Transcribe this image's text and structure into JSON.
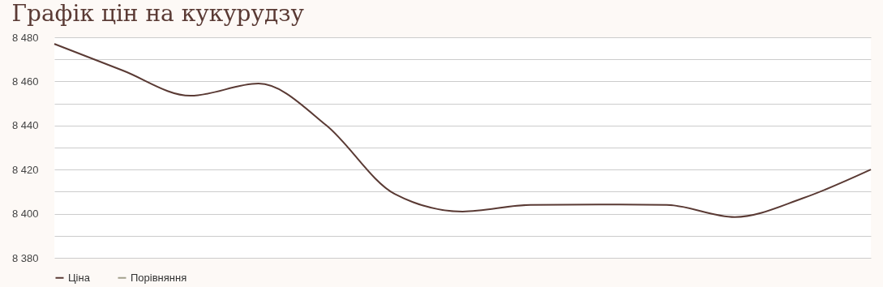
{
  "chart_data": {
    "type": "line",
    "title": "Графік цін на кукурудзу",
    "categories": [
      null,
      null,
      null,
      null,
      null,
      null,
      null,
      null,
      null,
      null,
      null,
      null,
      null
    ],
    "series": [
      {
        "name": "Ціна",
        "color": "#5a3a34",
        "values": [
          8477,
          8465,
          8453.5,
          8459,
          8440,
          8409,
          8401,
          8404,
          8404.2,
          8404,
          8398.5,
          8407,
          8420
        ]
      },
      {
        "name": "Порівняння",
        "color": "#a3a08c",
        "values": [
          null,
          null,
          null,
          null,
          null,
          null,
          null,
          null,
          null,
          null,
          null,
          null,
          null
        ]
      }
    ],
    "ylim": [
      8380,
      8480
    ],
    "yticks": [
      {
        "value": 8380,
        "label": "8 380"
      },
      {
        "value": 8390,
        "label": null
      },
      {
        "value": 8400,
        "label": "8 400"
      },
      {
        "value": 8410,
        "label": null
      },
      {
        "value": 8420,
        "label": "8 420"
      },
      {
        "value": 8430,
        "label": null
      },
      {
        "value": 8440,
        "label": "8 440"
      },
      {
        "value": 8450,
        "label": null
      },
      {
        "value": 8460,
        "label": "8 460"
      },
      {
        "value": 8470,
        "label": null
      },
      {
        "value": 8480,
        "label": "8 480"
      }
    ],
    "grid": "y",
    "legend": "bottom",
    "marker": "none",
    "line_style": "solid",
    "tick_labels": "y"
  }
}
